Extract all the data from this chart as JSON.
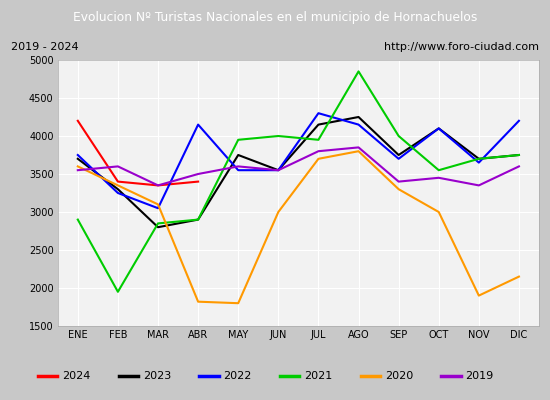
{
  "title": "Evolucion Nº Turistas Nacionales en el municipio de Hornachuelos",
  "subtitle_left": "2019 - 2024",
  "subtitle_right": "http://www.foro-ciudad.com",
  "x_labels": [
    "ENE",
    "FEB",
    "MAR",
    "ABR",
    "MAY",
    "JUN",
    "JUL",
    "AGO",
    "SEP",
    "OCT",
    "NOV",
    "DIC"
  ],
  "ylim": [
    1500,
    5000
  ],
  "yticks": [
    1500,
    2000,
    2500,
    3000,
    3500,
    4000,
    4500,
    5000
  ],
  "series": {
    "2024": {
      "color": "#ff0000",
      "data": [
        4200,
        3400,
        3350,
        3400,
        null,
        null,
        null,
        null,
        null,
        null,
        null,
        null
      ]
    },
    "2023": {
      "color": "#000000",
      "data": [
        3700,
        3300,
        2800,
        2900,
        3750,
        3550,
        4150,
        4250,
        3750,
        4100,
        3700,
        3750
      ]
    },
    "2022": {
      "color": "#0000ff",
      "data": [
        3750,
        3250,
        3050,
        4150,
        3550,
        3550,
        4300,
        4150,
        3700,
        4100,
        3650,
        4200
      ]
    },
    "2021": {
      "color": "#00cc00",
      "data": [
        2900,
        1950,
        2850,
        2900,
        3950,
        4000,
        3950,
        4850,
        4000,
        3550,
        3700,
        3750
      ]
    },
    "2020": {
      "color": "#ff9900",
      "data": [
        3600,
        3350,
        3100,
        1820,
        1800,
        3000,
        3700,
        3800,
        3300,
        3000,
        1900,
        2150
      ]
    },
    "2019": {
      "color": "#9900cc",
      "data": [
        3550,
        3600,
        3350,
        3500,
        3600,
        3550,
        3800,
        3850,
        3400,
        3450,
        3350,
        3600
      ]
    }
  },
  "legend_order": [
    "2024",
    "2023",
    "2022",
    "2021",
    "2020",
    "2019"
  ],
  "title_bg_color": "#4472c4",
  "title_font_color": "#ffffff",
  "plot_bg_color": "#f2f2f2",
  "outer_bg_color": "#c8c8c8",
  "grid_color": "#ffffff"
}
